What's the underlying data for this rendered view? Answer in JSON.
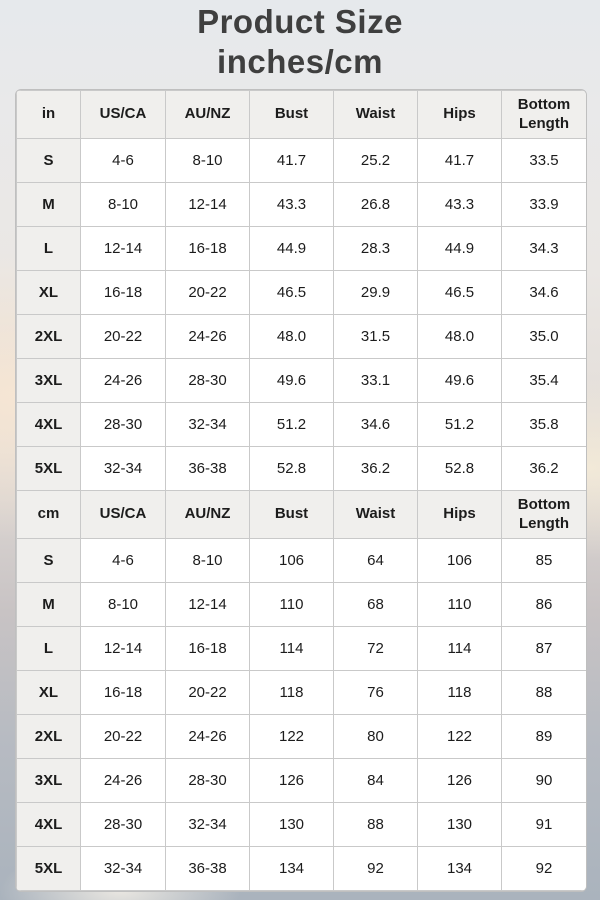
{
  "page": {
    "title_line1": "Product Size",
    "title_line2": "inches/cm"
  },
  "colors": {
    "title_text": "#3f3f3f",
    "table_text": "#1c1c1c",
    "header_bg": "#f0efed",
    "cell_bg": "#ffffff",
    "border": "#c9c9c9"
  },
  "chart_data": {
    "type": "table",
    "title": "Product Size",
    "subtitle": "inches/cm",
    "sections": [
      {
        "unit_label": "in",
        "headers": [
          "US/CA",
          "AU/NZ",
          "Bust",
          "Waist",
          "Hips",
          "Bottom Length"
        ],
        "rows": [
          {
            "size": "S",
            "values": [
              "4-6",
              "8-10",
              "41.7",
              "25.2",
              "41.7",
              "33.5"
            ]
          },
          {
            "size": "M",
            "values": [
              "8-10",
              "12-14",
              "43.3",
              "26.8",
              "43.3",
              "33.9"
            ]
          },
          {
            "size": "L",
            "values": [
              "12-14",
              "16-18",
              "44.9",
              "28.3",
              "44.9",
              "34.3"
            ]
          },
          {
            "size": "XL",
            "values": [
              "16-18",
              "20-22",
              "46.5",
              "29.9",
              "46.5",
              "34.6"
            ]
          },
          {
            "size": "2XL",
            "values": [
              "20-22",
              "24-26",
              "48.0",
              "31.5",
              "48.0",
              "35.0"
            ]
          },
          {
            "size": "3XL",
            "values": [
              "24-26",
              "28-30",
              "49.6",
              "33.1",
              "49.6",
              "35.4"
            ]
          },
          {
            "size": "4XL",
            "values": [
              "28-30",
              "32-34",
              "51.2",
              "34.6",
              "51.2",
              "35.8"
            ]
          },
          {
            "size": "5XL",
            "values": [
              "32-34",
              "36-38",
              "52.8",
              "36.2",
              "52.8",
              "36.2"
            ]
          }
        ]
      },
      {
        "unit_label": "cm",
        "headers": [
          "US/CA",
          "AU/NZ",
          "Bust",
          "Waist",
          "Hips",
          "Bottom Length"
        ],
        "rows": [
          {
            "size": "S",
            "values": [
              "4-6",
              "8-10",
              "106",
              "64",
              "106",
              "85"
            ]
          },
          {
            "size": "M",
            "values": [
              "8-10",
              "12-14",
              "110",
              "68",
              "110",
              "86"
            ]
          },
          {
            "size": "L",
            "values": [
              "12-14",
              "16-18",
              "114",
              "72",
              "114",
              "87"
            ]
          },
          {
            "size": "XL",
            "values": [
              "16-18",
              "20-22",
              "118",
              "76",
              "118",
              "88"
            ]
          },
          {
            "size": "2XL",
            "values": [
              "20-22",
              "24-26",
              "122",
              "80",
              "122",
              "89"
            ]
          },
          {
            "size": "3XL",
            "values": [
              "24-26",
              "28-30",
              "126",
              "84",
              "126",
              "90"
            ]
          },
          {
            "size": "4XL",
            "values": [
              "28-30",
              "32-34",
              "130",
              "88",
              "130",
              "91"
            ]
          },
          {
            "size": "5XL",
            "values": [
              "32-34",
              "36-38",
              "134",
              "92",
              "134",
              "92"
            ]
          }
        ]
      }
    ]
  }
}
